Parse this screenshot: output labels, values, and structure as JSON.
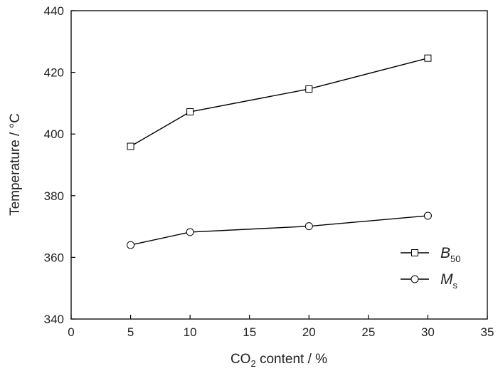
{
  "chart_data": {
    "type": "line",
    "x": [
      5,
      10,
      20,
      30
    ],
    "series": [
      {
        "name": "B50",
        "label_main": "B",
        "label_sub": "50",
        "marker": "square",
        "values": [
          396,
          407.2,
          414.6,
          424.6
        ]
      },
      {
        "name": "Ms",
        "label_main": "M",
        "label_sub": "s",
        "marker": "circle",
        "values": [
          364,
          368.2,
          370.1,
          373.5
        ]
      }
    ],
    "xlabel": {
      "prefix": "CO",
      "sub": "2",
      "suffix": " content / %"
    },
    "ylabel": "Temperature / °C",
    "xlim": [
      0,
      35
    ],
    "ylim": [
      340,
      440
    ],
    "xticks": [
      "0",
      "5",
      "10",
      "15",
      "20",
      "25",
      "30",
      "35"
    ],
    "yticks": [
      "340",
      "360",
      "380",
      "400",
      "420",
      "440"
    ],
    "grid": false,
    "legend_position": "bottom-right",
    "line_color": "#000000",
    "marker_fill": "#ffffff"
  }
}
